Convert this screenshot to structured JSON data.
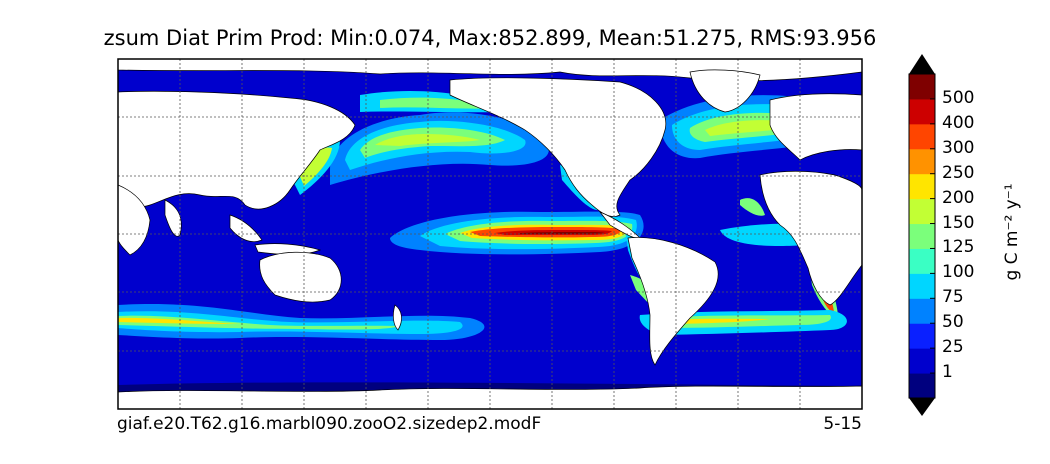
{
  "title": "zsum Diat Prim Prod: Min:0.074, Max:852.899, Mean:51.275, RMS:93.956",
  "footer": {
    "case": "giaf.e20.T62.g16.marbl090.zooO2.sizedep2.modF",
    "years": "5-15"
  },
  "colorbar": {
    "units": "g C m⁻² y⁻¹",
    "levels": [
      "1",
      "25",
      "50",
      "75",
      "100",
      "125",
      "150",
      "200",
      "250",
      "300",
      "400",
      "500"
    ],
    "colors": [
      "#00007f",
      "#0000cd",
      "#0a20ff",
      "#0082ff",
      "#00d6ff",
      "#3affc4",
      "#7bff7b",
      "#c2ff34",
      "#ffe500",
      "#ff9200",
      "#ff4500",
      "#cd0000",
      "#7f0000"
    ]
  },
  "chart_data": {
    "type": "heatmap",
    "title": "zsum Diat Prim Prod: Min:0.074, Max:852.899, Mean:51.275, RMS:93.956",
    "variable": "Diat Prim Prod",
    "stats": {
      "min": 0.074,
      "max": 852.899,
      "mean": 51.275,
      "rms": 93.956
    },
    "units": "g C m⁻² y⁻¹",
    "contour_levels": [
      1,
      25,
      50,
      75,
      100,
      125,
      150,
      200,
      250,
      300,
      400,
      500
    ],
    "grid": true,
    "legend": "right colorbar with extend arrows",
    "projection": "global lat-lon, centered on Pacific"
  }
}
